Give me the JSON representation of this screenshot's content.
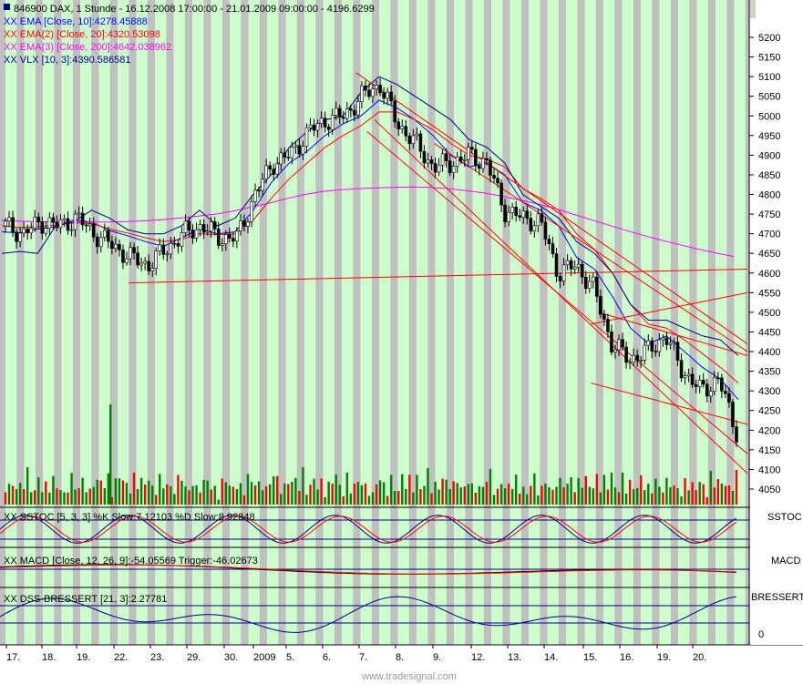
{
  "header": {
    "title": "846900  DAX, 1 Stunde - 16.12.2008 17:00:00 - 21.01.2009 09:00:00 - 4196.6299",
    "indicators": [
      {
        "text": "XX EMA [Close, 10]:4278.45888",
        "color": "#0000ff"
      },
      {
        "text": "XX EMA(2) [Close, 20]:4320.53098",
        "color": "#ff0000"
      },
      {
        "text": "XX EMA(3) [Close, 200]:4642.038962",
        "color": "#ff00ff"
      },
      {
        "text": "XX VLX [10, 3]:4390.586581",
        "color": "#000080"
      }
    ]
  },
  "panels": {
    "sstoc": {
      "label": "XX SSTOC [5, 3, 3] %K Slow:7.12103 %D Slow:8.92848",
      "tag": "SSTOC"
    },
    "macd": {
      "label": "XX MACD [Close, 12, 26, 9]:-54.05569 Trigger:-46.02673",
      "tag": "MACD"
    },
    "dss": {
      "label": "XX DSS-BRESSERT [21, 3]:2.27781",
      "tag": "BRESSERT",
      "tick": "0"
    }
  },
  "footer": {
    "watermark": "www.tradesignal.com"
  },
  "colors": {
    "band": "#c0c0c0",
    "band_alt": "#ccffcc",
    "up": "#008000",
    "down": "#ff0000",
    "ema10": "#0000ff",
    "ema20": "#ff0000",
    "ema200": "#ff00ff",
    "vlx": "#000080"
  },
  "chart_data": {
    "type": "line",
    "title": "846900  DAX, 1 Stunde",
    "ylim": [
      4000,
      5250
    ],
    "y_ticks": [
      4050,
      4100,
      4150,
      4200,
      4250,
      4300,
      4350,
      4400,
      4450,
      4500,
      4550,
      4600,
      4650,
      4700,
      4750,
      4800,
      4850,
      4900,
      4950,
      5000,
      5050,
      5100,
      5150,
      5200
    ],
    "x_tick_labels": [
      "17.",
      "18.",
      "19.",
      "22.",
      "23.",
      "29.",
      "30.",
      "2009",
      "5.",
      "6.",
      "7.",
      "8.",
      "9.",
      "12.",
      "13.",
      "14.",
      "15.",
      "16.",
      "19.",
      "20."
    ],
    "series": [
      {
        "name": "EMA [Close, 10]",
        "values": [
          4705,
          4702,
          4712,
          4718,
          4735,
          4730,
          4708,
          4695,
          4680,
          4668,
          4690,
          4712,
          4700,
          4705,
          4760,
          4830,
          4880,
          4910,
          4950,
          4980,
          5000,
          5040,
          5020,
          4990,
          4950,
          4900,
          4870,
          4880,
          4850,
          4780,
          4760,
          4720,
          4640,
          4610,
          4540,
          4460,
          4420,
          4440,
          4400,
          4360,
          4330,
          4278
        ]
      },
      {
        "name": "EMA(2) [Close, 20]",
        "values": [
          4720,
          4716,
          4718,
          4722,
          4728,
          4726,
          4712,
          4702,
          4690,
          4680,
          4686,
          4700,
          4698,
          4700,
          4735,
          4790,
          4840,
          4880,
          4920,
          4950,
          4975,
          5010,
          5010,
          4990,
          4965,
          4930,
          4900,
          4890,
          4870,
          4815,
          4790,
          4760,
          4700,
          4660,
          4600,
          4520,
          4470,
          4460,
          4430,
          4395,
          4360,
          4320
        ]
      },
      {
        "name": "EMA(3) [Close, 200]",
        "values": [
          4735,
          4732,
          4731,
          4730,
          4730,
          4730,
          4730,
          4731,
          4733,
          4736,
          4740,
          4745,
          4750,
          4758,
          4768,
          4778,
          4790,
          4800,
          4808,
          4812,
          4815,
          4817,
          4818,
          4819,
          4818,
          4815,
          4810,
          4804,
          4796,
          4786,
          4776,
          4764,
          4750,
          4736,
          4722,
          4708,
          4695,
          4683,
          4672,
          4661,
          4651,
          4642
        ]
      },
      {
        "name": "VLX [10, 3]",
        "values": [
          4650,
          4655,
          4650,
          4720,
          4730,
          4760,
          4740,
          4710,
          4700,
          4700,
          4720,
          4760,
          4720,
          4740,
          4800,
          4850,
          4920,
          4960,
          4990,
          5000,
          5060,
          5100,
          5080,
          5050,
          5020,
          4990,
          4940,
          4920,
          4880,
          4800,
          4770,
          4740,
          4680,
          4650,
          4600,
          4520,
          4480,
          4480,
          4460,
          4440,
          4430,
          4390
        ]
      },
      {
        "name": "Close",
        "values": [
          4720,
          4700,
          4730,
          4720,
          4740,
          4700,
          4670,
          4640,
          4620,
          4660,
          4700,
          4720,
          4690,
          4690,
          4800,
          4880,
          4900,
          4960,
          4990,
          5000,
          5050,
          5080,
          4980,
          4930,
          4870,
          4880,
          4900,
          4880,
          4760,
          4740,
          4730,
          4600,
          4620,
          4560,
          4420,
          4380,
          4400,
          4440,
          4350,
          4300,
          4330,
          4196.63
        ]
      }
    ],
    "trendlines": [
      {
        "from": [
          0.17,
          4575
        ],
        "to": [
          1.0,
          4610
        ]
      },
      {
        "from": [
          0.475,
          5110
        ],
        "to": [
          1.0,
          4420
        ]
      },
      {
        "from": [
          0.49,
          4960
        ],
        "to": [
          1.0,
          4140
        ]
      },
      {
        "from": [
          0.5,
          4990
        ],
        "to": [
          1.0,
          4090
        ]
      },
      {
        "from": [
          0.58,
          4930
        ],
        "to": [
          1.0,
          4400
        ]
      },
      {
        "from": [
          0.79,
          4320
        ],
        "to": [
          1.0,
          4215
        ]
      },
      {
        "from": [
          0.79,
          4470
        ],
        "to": [
          1.0,
          4550
        ]
      },
      {
        "from": [
          0.8,
          4500
        ],
        "to": [
          1.0,
          4390
        ]
      }
    ],
    "volume": [
      30,
      20,
      25,
      18,
      22,
      28,
      35,
      20,
      15,
      30,
      18,
      22,
      25,
      28,
      20,
      18,
      12,
      25,
      30,
      22,
      18,
      28,
      20,
      15,
      32,
      25,
      28,
      22,
      30,
      18,
      25,
      35,
      28,
      22,
      20,
      30,
      25,
      28,
      22,
      35,
      18,
      20
    ]
  }
}
